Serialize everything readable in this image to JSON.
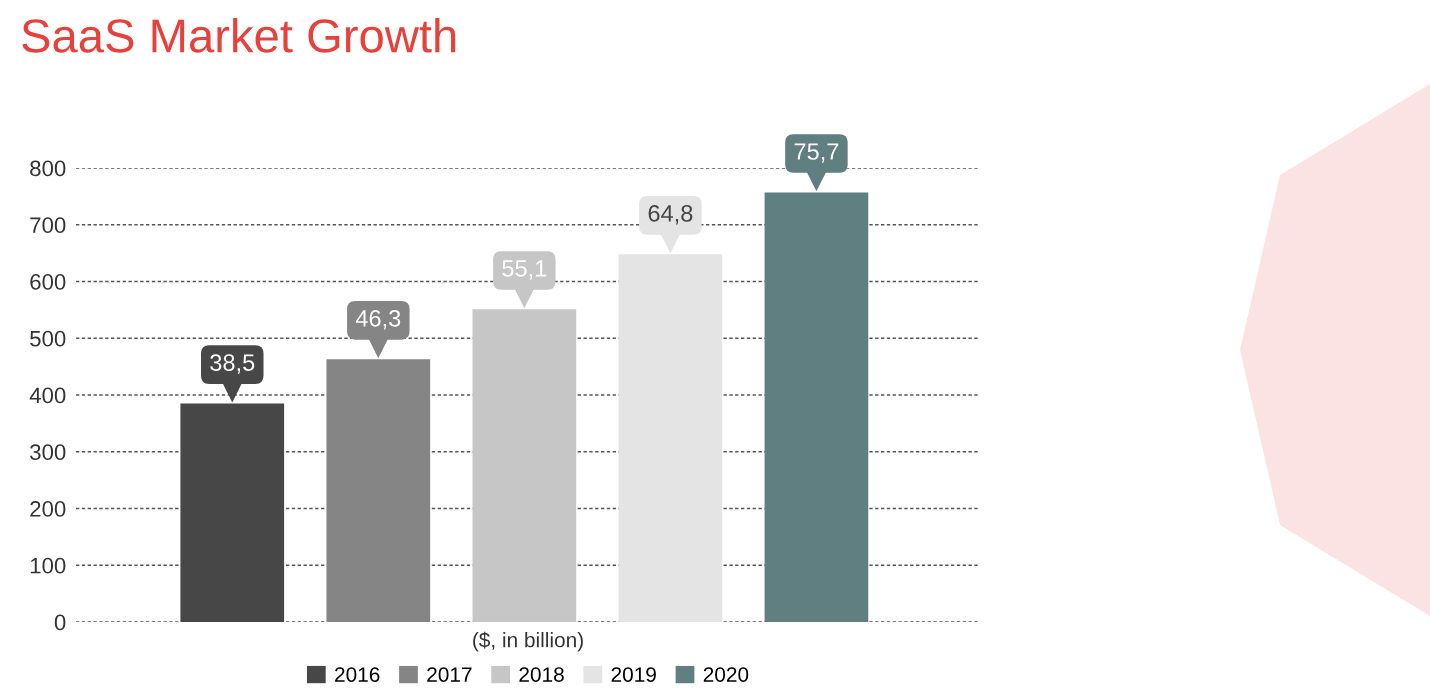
{
  "chart_data": {
    "type": "bar",
    "title": "SaaS Market Growth",
    "xlabel": "($, in billion)",
    "categories": [
      null,
      null,
      null,
      null,
      null
    ],
    "series": [
      {
        "name": "2016",
        "color": "#474747",
        "values": [
          385,
          null,
          null,
          null,
          null
        ]
      },
      {
        "name": "2017",
        "color": "#858585",
        "values": [
          null,
          463,
          null,
          null,
          null
        ]
      },
      {
        "name": "2018",
        "color": "#c6c6c6",
        "values": [
          null,
          null,
          551,
          null,
          null
        ]
      },
      {
        "name": "2019",
        "color": "#e4e4e4",
        "values": [
          null,
          null,
          null,
          648,
          null
        ]
      },
      {
        "name": "2020",
        "color": "#5f7f81",
        "values": [
          null,
          null,
          null,
          null,
          757
        ]
      }
    ],
    "annotations": [
      {
        "text": "38,5",
        "y": 385
      },
      {
        "text": "46,3",
        "y": 463
      },
      {
        "text": "55,1",
        "y": 551
      },
      {
        "text": "64,8",
        "y": 648
      },
      {
        "text": "75,7",
        "y": 757
      }
    ],
    "ylim": [
      0,
      800
    ],
    "yticks": [
      0,
      100,
      200,
      300,
      400,
      500,
      600,
      700,
      800
    ],
    "grid": "y",
    "legend": "bottom"
  }
}
